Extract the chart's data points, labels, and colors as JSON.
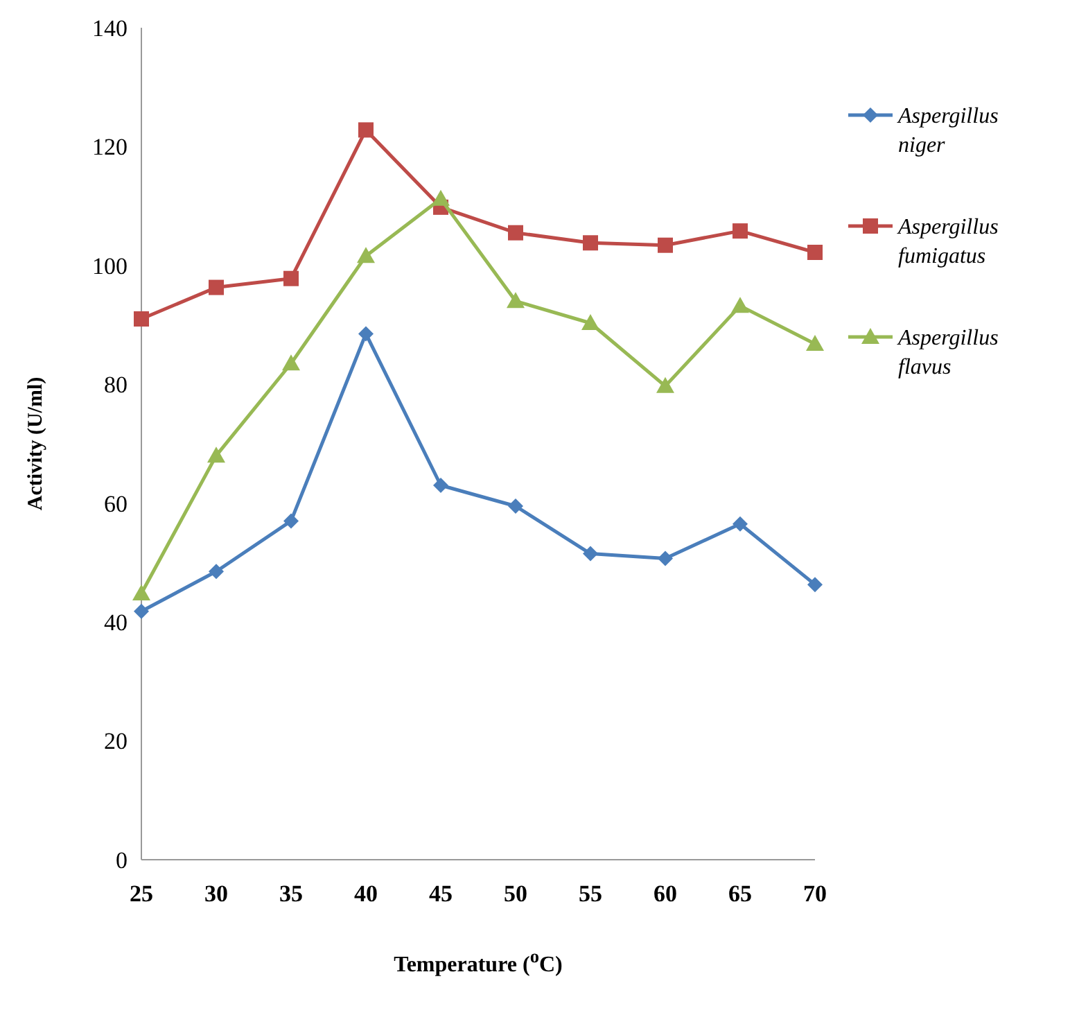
{
  "chart_data": {
    "type": "line",
    "xlabel": "Temperature ($^{o}$C)",
    "ylabel": "Activity (U/ml)",
    "x": [
      25,
      30,
      35,
      40,
      45,
      50,
      55,
      60,
      65,
      70
    ],
    "xlim": [
      25,
      70
    ],
    "xticks": [
      25,
      30,
      35,
      40,
      45,
      50,
      55,
      60,
      65,
      70
    ],
    "ylim": [
      0,
      140
    ],
    "yticks": [
      0,
      20,
      40,
      60,
      80,
      100,
      120,
      140
    ],
    "grid": false,
    "legend": "right",
    "line_style": "solid",
    "series": [
      {
        "name": "Aspergillus niger",
        "color": "#4a7ebb",
        "marker": "diamond",
        "values": [
          41.8,
          48.5,
          57,
          88.5,
          63,
          59.5,
          51.5,
          50.7,
          56.5,
          46.3
        ]
      },
      {
        "name": "Aspergillus fumigatus",
        "color": "#be4b48",
        "marker": "square",
        "values": [
          91,
          96.3,
          97.8,
          122.8,
          109.8,
          105.5,
          103.8,
          103.4,
          105.8,
          102.2
        ]
      },
      {
        "name": "Aspergillus flavus",
        "color": "#98b954",
        "marker": "triangle",
        "values": [
          44.8,
          68,
          83.5,
          101.6,
          111.2,
          94,
          90.3,
          79.7,
          93.2,
          86.8
        ]
      }
    ]
  }
}
